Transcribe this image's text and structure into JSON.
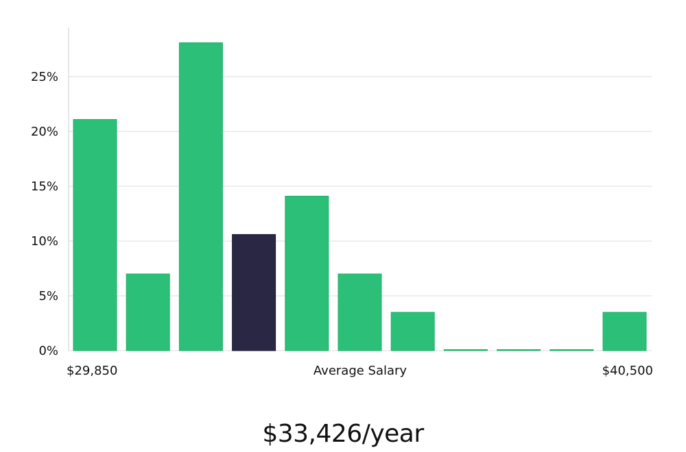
{
  "chart_data": {
    "type": "bar",
    "title": "",
    "xlabel": "Average Salary",
    "ylabel": "",
    "ylim": [
      0,
      29.5
    ],
    "yticks": [
      0,
      5,
      10,
      15,
      20,
      25
    ],
    "ytick_labels": [
      "0%",
      "5%",
      "10%",
      "15%",
      "20%",
      "25%"
    ],
    "x_min_label": "$29,850",
    "x_max_label": "$40,500",
    "values": [
      21.1,
      7.0,
      28.1,
      10.6,
      14.1,
      7.0,
      3.5,
      0,
      0,
      0,
      3.5
    ],
    "highlight_index": 3,
    "grid": true,
    "colors": {
      "bar": "#2bbf77",
      "bar_edge": "#22b06c",
      "highlight": "#2a2745",
      "highlight_edge": "#1c1a33",
      "grid": "#dddddd",
      "axis": "#cccccc"
    }
  },
  "salary_text": "$33,426/year"
}
